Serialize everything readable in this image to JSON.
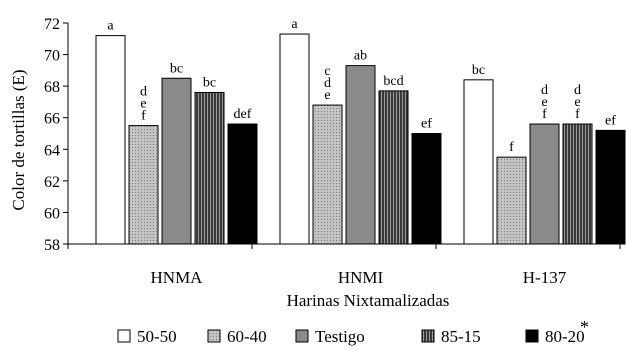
{
  "chart_data": {
    "type": "bar",
    "title": "",
    "xlabel": "Harinas Nixtamalizadas",
    "ylabel": "Color de tortillas (E)",
    "ylim": [
      58,
      72
    ],
    "yticks": [
      58,
      60,
      62,
      64,
      66,
      68,
      70,
      72
    ],
    "grid": false,
    "legend_position": "bottom",
    "legend_note": "*",
    "categories": [
      "HNMA",
      "HNMI",
      "H-137"
    ],
    "series": [
      {
        "name": "50-50",
        "color": "#ffffff",
        "pattern": "none",
        "values": [
          71.2,
          71.3,
          68.4
        ],
        "labels": [
          [
            "a"
          ],
          [
            "a"
          ],
          [
            "bc"
          ]
        ]
      },
      {
        "name": "60-40",
        "color": "#b0b0b0",
        "pattern": "dots",
        "values": [
          65.5,
          66.8,
          63.5
        ],
        "labels": [
          [
            "d",
            "e",
            "f"
          ],
          [
            "c",
            "d",
            "e"
          ],
          [
            "f"
          ]
        ]
      },
      {
        "name": "Testigo",
        "color": "#8a8a8a",
        "pattern": "none",
        "values": [
          68.5,
          69.3,
          65.6
        ],
        "labels": [
          [
            "bc"
          ],
          [
            "ab"
          ],
          [
            "d",
            "e",
            "f"
          ]
        ]
      },
      {
        "name": "85-15",
        "color": "#555555",
        "pattern": "vlines",
        "values": [
          67.6,
          67.7,
          65.6
        ],
        "labels": [
          [
            "bc"
          ],
          [
            "bcd"
          ],
          [
            "d",
            "e",
            "f"
          ]
        ]
      },
      {
        "name": "80-20",
        "color": "#000000",
        "pattern": "none",
        "values": [
          65.6,
          65.0,
          65.2
        ],
        "labels": [
          [
            "def"
          ],
          [
            "ef"
          ],
          [
            "ef"
          ]
        ]
      }
    ]
  }
}
